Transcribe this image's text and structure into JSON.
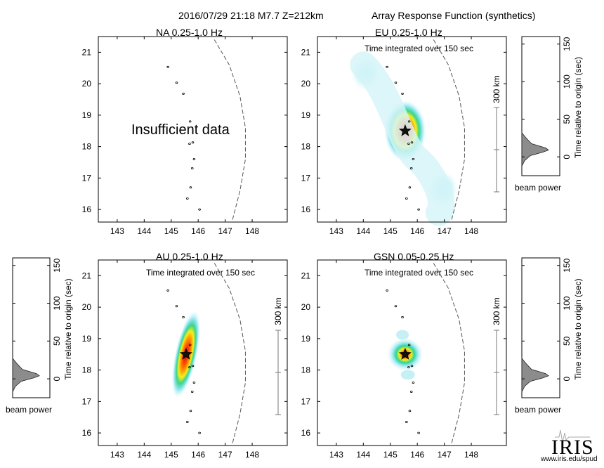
{
  "header": {
    "event": "2016/07/29 21:18  M7.7  Z=212km",
    "product": "Array Response Function (synthetics)"
  },
  "chart_data": [
    {
      "type": "heatmap",
      "title": "NA  0.25-1.0 Hz",
      "subtitle": "",
      "message": "Insufficient data",
      "xlim": [
        142.3,
        149.3
      ],
      "ylim": [
        15.6,
        21.5
      ],
      "xticks": [
        143,
        144,
        145,
        146,
        147,
        148
      ],
      "yticks": [
        16,
        17,
        18,
        19,
        20,
        21
      ],
      "scale_label": "",
      "energy": []
    },
    {
      "type": "heatmap",
      "title": "EU  0.25-1.0 Hz",
      "subtitle": "Time integrated over 150 sec",
      "message": "",
      "xlim": [
        142.3,
        149.3
      ],
      "ylim": [
        15.6,
        21.5
      ],
      "xticks": [
        143,
        144,
        145,
        146,
        147,
        148
      ],
      "yticks": [
        16,
        17,
        18,
        19,
        20,
        21
      ],
      "scale_label": "300 km",
      "energy": [
        {
          "lon": 145.55,
          "lat": 18.5,
          "level": 1.0
        },
        {
          "lon": 144.1,
          "lat": 20.35,
          "level": 0.2
        },
        {
          "lon": 146.95,
          "lat": 16.65,
          "level": 0.25
        }
      ],
      "beam_power": {
        "xlabel": "beam power",
        "ylabel": "Time relative to origin (sec)",
        "yticks": [
          0,
          50,
          100,
          150
        ],
        "peak_time": 10
      }
    },
    {
      "type": "heatmap",
      "title": "AU  0.25-1.0 Hz",
      "subtitle": "Time integrated over 150 sec",
      "message": "",
      "xlim": [
        142.3,
        149.3
      ],
      "ylim": [
        15.6,
        21.5
      ],
      "xticks": [
        143,
        144,
        145,
        146,
        147,
        148
      ],
      "yticks": [
        16,
        17,
        18,
        19,
        20,
        21
      ],
      "scale_label": "300 km",
      "energy": [
        {
          "lon": 145.55,
          "lat": 18.5,
          "level": 1.0
        }
      ],
      "beam_power": {
        "xlabel": "beam power",
        "ylabel": "Time relative to origin (sec)",
        "yticks": [
          0,
          50,
          100,
          150
        ],
        "peak_time": 5
      }
    },
    {
      "type": "heatmap",
      "title": "GSN  0.05-0.25 Hz",
      "subtitle": "Time integrated over 150 sec",
      "message": "",
      "xlim": [
        142.3,
        149.3
      ],
      "ylim": [
        15.6,
        21.5
      ],
      "xticks": [
        143,
        144,
        145,
        146,
        147,
        148
      ],
      "yticks": [
        16,
        17,
        18,
        19,
        20,
        21
      ],
      "scale_label": "300 km",
      "energy": [
        {
          "lon": 145.55,
          "lat": 18.5,
          "level": 0.9
        }
      ],
      "beam_power": {
        "xlabel": "beam power",
        "ylabel": "Time relative to origin (sec)",
        "yticks": [
          0,
          50,
          100,
          150
        ],
        "peak_time": 5
      }
    }
  ],
  "epicenter": {
    "lon": 145.55,
    "lat": 18.5,
    "marker": "star-icon"
  },
  "islands": [
    {
      "lon": 144.88,
      "lat": 20.53
    },
    {
      "lon": 145.2,
      "lat": 20.03
    },
    {
      "lon": 145.45,
      "lat": 19.68
    },
    {
      "lon": 145.7,
      "lat": 18.8
    },
    {
      "lon": 145.8,
      "lat": 18.13
    },
    {
      "lon": 145.68,
      "lat": 18.09
    },
    {
      "lon": 145.85,
      "lat": 17.6
    },
    {
      "lon": 145.78,
      "lat": 17.31
    },
    {
      "lon": 145.72,
      "lat": 16.7
    },
    {
      "lon": 145.6,
      "lat": 16.35
    },
    {
      "lon": 146.05,
      "lat": 16.0
    }
  ],
  "trench": [
    {
      "lon": 146.6,
      "lat": 21.4
    },
    {
      "lon": 147.15,
      "lat": 20.6
    },
    {
      "lon": 147.55,
      "lat": 19.6
    },
    {
      "lon": 147.75,
      "lat": 18.6
    },
    {
      "lon": 147.75,
      "lat": 17.6
    },
    {
      "lon": 147.55,
      "lat": 16.6
    },
    {
      "lon": 147.25,
      "lat": 15.6
    }
  ],
  "logo": {
    "brand": "IRIS",
    "url": "www.iris.edu/spud"
  },
  "colors": {
    "core": "#e8001a",
    "hot": "#ff7d00",
    "warm": "#f7ef1a",
    "mid": "#2fd49a",
    "cool": "#8fe6ef",
    "faint": "#dcf5f9",
    "trace": "#8c8c8c"
  }
}
